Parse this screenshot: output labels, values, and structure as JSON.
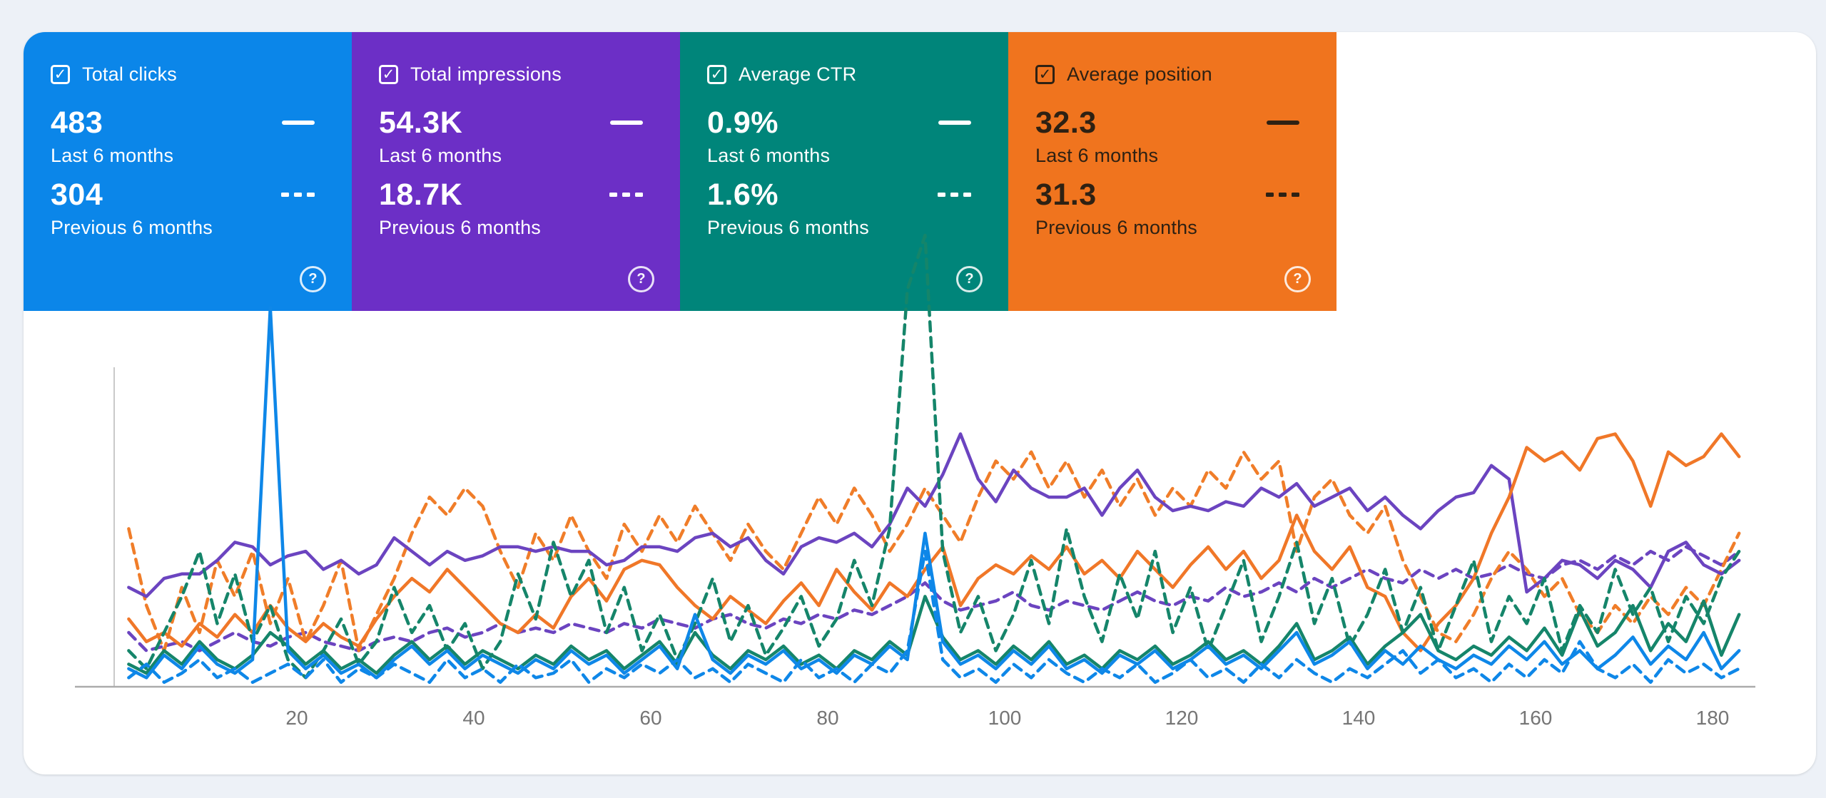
{
  "page": {
    "background": "#edf1f7",
    "panel_background": "#ffffff"
  },
  "icons": {
    "check": "✓",
    "help": "?"
  },
  "cards": [
    {
      "id": "total-clicks",
      "label": "Total clicks",
      "color": "#0b86e9",
      "text_color": "#ffffff",
      "primary_value": "483",
      "primary_period": "Last 6 months",
      "secondary_value": "304",
      "secondary_period": "Previous 6 months",
      "checked": true
    },
    {
      "id": "total-impressions",
      "label": "Total impressions",
      "color": "#6c2fc6",
      "text_color": "#ffffff",
      "primary_value": "54.3K",
      "primary_period": "Last 6 months",
      "secondary_value": "18.7K",
      "secondary_period": "Previous 6 months",
      "checked": true
    },
    {
      "id": "average-ctr",
      "label": "Average CTR",
      "color": "#00857a",
      "text_color": "#ffffff",
      "primary_value": "0.9%",
      "primary_period": "Last 6 months",
      "secondary_value": "1.6%",
      "secondary_period": "Previous 6 months",
      "checked": true
    },
    {
      "id": "average-position",
      "label": "Average position",
      "color": "#f0741e",
      "text_color": "#2e2113",
      "primary_value": "32.3",
      "primary_period": "Last 6 months",
      "secondary_value": "31.3",
      "secondary_period": "Previous 6 months",
      "checked": true
    }
  ],
  "chart_data": {
    "type": "line",
    "title": "",
    "xlabel": "",
    "ylabel": "",
    "x_label_ticks": [
      20,
      40,
      60,
      80,
      100,
      120,
      140,
      160,
      180
    ],
    "x_start": 1,
    "x_step": 2,
    "x_range": [
      1,
      184
    ],
    "grid": false,
    "legend_position": "none (legend shown as card indicators: solid = last 6 months, dashed = previous 6 months)",
    "y_units": "percent of plot height (each metric normalized to its own hidden scale)",
    "axis_colors": {
      "baseline": "#ababab",
      "y_axis": "#c9c9c9",
      "tick_text": "#757575"
    },
    "series": [
      {
        "id": "impressions-previous",
        "name": "Total impressions — Previous 6 months",
        "metric": "Total impressions",
        "period": "Previous 6 months",
        "color": "#6b44c0",
        "dash": "dashed",
        "values": [
          12,
          8,
          9,
          10,
          8,
          10,
          12,
          10,
          9,
          11,
          12,
          10,
          9,
          8,
          10,
          11,
          10,
          12,
          13,
          11,
          12,
          14,
          12,
          13,
          12,
          14,
          13,
          12,
          14,
          13,
          15,
          14,
          13,
          15,
          16,
          14,
          13,
          15,
          14,
          16,
          15,
          17,
          16,
          18,
          20,
          23,
          19,
          17,
          18,
          19,
          21,
          18,
          17,
          19,
          18,
          17,
          19,
          21,
          19,
          18,
          20,
          19,
          22,
          20,
          21,
          23,
          21,
          24,
          22,
          24,
          26,
          24,
          23,
          26,
          24,
          26,
          24,
          25,
          27,
          25,
          24,
          27,
          28,
          26,
          29,
          27,
          30,
          28,
          31,
          29,
          27,
          30
        ]
      },
      {
        "id": "position-previous",
        "name": "Average position — Previous 6 months",
        "metric": "Average position",
        "period": "Previous 6 months",
        "color": "#f07d29",
        "dash": "dashed",
        "values": [
          35,
          18,
          8,
          22,
          12,
          28,
          20,
          30,
          14,
          24,
          10,
          18,
          28,
          8,
          16,
          24,
          34,
          42,
          38,
          44,
          40,
          30,
          22,
          34,
          28,
          38,
          30,
          24,
          36,
          30,
          38,
          32,
          40,
          34,
          28,
          36,
          30,
          26,
          34,
          42,
          36,
          44,
          38,
          30,
          36,
          44,
          38,
          32,
          42,
          50,
          46,
          52,
          44,
          50,
          42,
          48,
          40,
          46,
          38,
          44,
          40,
          48,
          44,
          52,
          46,
          50,
          30,
          42,
          46,
          38,
          34,
          40,
          28,
          20,
          12,
          10,
          16,
          24,
          30,
          26,
          20,
          24,
          16,
          12,
          18,
          14,
          20,
          16,
          22,
          18,
          26,
          34
        ]
      },
      {
        "id": "impressions-last",
        "name": "Total impressions — Last 6 months",
        "metric": "Total impressions",
        "period": "Last 6 months",
        "color": "#6b44c0",
        "dash": "solid",
        "values": [
          22,
          20,
          24,
          25,
          25,
          28,
          32,
          31,
          27,
          29,
          30,
          26,
          28,
          25,
          27,
          33,
          30,
          27,
          30,
          28,
          29,
          31,
          31,
          30,
          31,
          30,
          30,
          27,
          28,
          31,
          31,
          30,
          33,
          34,
          31,
          33,
          28,
          25,
          31,
          33,
          32,
          34,
          31,
          36,
          44,
          40,
          47,
          56,
          46,
          41,
          48,
          44,
          42,
          42,
          44,
          38,
          44,
          48,
          42,
          39,
          40,
          39,
          41,
          40,
          44,
          42,
          45,
          40,
          42,
          44,
          39,
          42,
          38,
          35,
          39,
          42,
          43,
          49,
          46,
          21,
          24,
          28,
          27,
          24,
          28,
          26,
          22,
          30,
          32,
          27,
          25,
          28
        ]
      },
      {
        "id": "position-last",
        "name": "Average position — Last 6 months",
        "metric": "Average position",
        "period": "Last 6 months",
        "color": "#f07728",
        "dash": "solid",
        "values": [
          15,
          10,
          12,
          9,
          14,
          11,
          16,
          12,
          18,
          13,
          10,
          14,
          11,
          9,
          15,
          20,
          24,
          21,
          26,
          22,
          18,
          14,
          12,
          16,
          13,
          20,
          24,
          19,
          26,
          28,
          27,
          22,
          18,
          15,
          20,
          17,
          14,
          19,
          23,
          18,
          26,
          21,
          17,
          23,
          20,
          26,
          31,
          18,
          24,
          27,
          25,
          29,
          26,
          31,
          25,
          28,
          24,
          30,
          26,
          22,
          27,
          31,
          26,
          30,
          24,
          28,
          38,
          30,
          26,
          31,
          22,
          20,
          12,
          8,
          14,
          18,
          24,
          34,
          42,
          53,
          50,
          52,
          48,
          55,
          56,
          50,
          40,
          52,
          49,
          51,
          56,
          51
        ]
      },
      {
        "id": "ctr-previous",
        "name": "Average CTR — Previous 6 months",
        "metric": "Average CTR",
        "period": "Previous 6 months",
        "color": "#15856a",
        "dash": "dashed",
        "values": [
          8,
          4,
          12,
          20,
          30,
          14,
          25,
          10,
          18,
          6,
          2,
          8,
          15,
          5,
          10,
          22,
          12,
          18,
          8,
          14,
          4,
          10,
          25,
          15,
          32,
          20,
          28,
          12,
          22,
          8,
          16,
          6,
          14,
          24,
          10,
          18,
          7,
          13,
          20,
          9,
          15,
          28,
          18,
          35,
          88,
          100,
          30,
          12,
          20,
          8,
          16,
          28,
          14,
          35,
          20,
          10,
          25,
          15,
          30,
          12,
          22,
          8,
          18,
          28,
          10,
          20,
          32,
          14,
          24,
          9,
          16,
          26,
          12,
          22,
          8,
          18,
          28,
          10,
          20,
          14,
          24,
          8,
          18,
          12,
          26,
          16,
          22,
          10,
          20,
          14,
          24,
          30
        ]
      },
      {
        "id": "ctr-last",
        "name": "Average CTR — Last 6 months",
        "metric": "Average CTR",
        "period": "Last 6 months",
        "color": "#15856a",
        "dash": "solid",
        "values": [
          5,
          3,
          8,
          5,
          10,
          6,
          4,
          7,
          12,
          9,
          5,
          8,
          4,
          6,
          3,
          7,
          10,
          6,
          9,
          5,
          8,
          6,
          4,
          7,
          5,
          9,
          6,
          8,
          4,
          7,
          10,
          5,
          12,
          7,
          4,
          8,
          6,
          9,
          5,
          7,
          4,
          8,
          6,
          10,
          7,
          20,
          11,
          6,
          8,
          5,
          9,
          6,
          10,
          5,
          7,
          4,
          8,
          6,
          9,
          5,
          7,
          10,
          6,
          8,
          5,
          9,
          14,
          6,
          8,
          11,
          5,
          9,
          12,
          16,
          8,
          6,
          9,
          7,
          11,
          8,
          13,
          7,
          17,
          9,
          12,
          18,
          8,
          14,
          10,
          19,
          7,
          16
        ]
      },
      {
        "id": "clicks-previous",
        "name": "Total clicks — Previous 6 months",
        "metric": "Total clicks",
        "period": "Previous 6 months",
        "color": "#0e87e8",
        "dash": "dashed",
        "values": [
          2,
          5,
          1,
          3,
          6,
          2,
          4,
          1,
          3,
          5,
          2,
          6,
          1,
          4,
          2,
          5,
          3,
          1,
          6,
          2,
          4,
          1,
          5,
          2,
          3,
          6,
          1,
          4,
          2,
          5,
          3,
          6,
          2,
          4,
          1,
          5,
          3,
          1,
          6,
          2,
          4,
          1,
          5,
          3,
          8,
          30,
          6,
          2,
          4,
          1,
          5,
          2,
          6,
          3,
          1,
          4,
          2,
          5,
          1,
          3,
          6,
          2,
          4,
          1,
          5,
          2,
          6,
          3,
          1,
          4,
          2,
          5,
          8,
          3,
          6,
          2,
          4,
          1,
          5,
          2,
          6,
          3,
          10,
          4,
          2,
          5,
          1,
          6,
          3,
          5,
          2,
          4
        ]
      },
      {
        "id": "clicks-last",
        "name": "Total clicks — Last 6 months",
        "metric": "Total clicks",
        "period": "Last 6 months",
        "color": "#0e87e8",
        "dash": "solid",
        "values": [
          4,
          2,
          7,
          4,
          9,
          5,
          3,
          6,
          84,
          8,
          4,
          7,
          3,
          5,
          2,
          6,
          9,
          5,
          8,
          4,
          7,
          5,
          3,
          6,
          4,
          8,
          5,
          7,
          3,
          6,
          9,
          4,
          16,
          6,
          3,
          7,
          5,
          8,
          4,
          6,
          3,
          7,
          5,
          9,
          6,
          34,
          10,
          5,
          7,
          4,
          8,
          5,
          9,
          4,
          6,
          3,
          7,
          5,
          8,
          4,
          6,
          9,
          5,
          7,
          4,
          8,
          12,
          5,
          7,
          10,
          4,
          8,
          5,
          9,
          6,
          4,
          7,
          5,
          9,
          6,
          10,
          5,
          8,
          4,
          7,
          11,
          5,
          9,
          6,
          12,
          4,
          8
        ]
      }
    ]
  }
}
